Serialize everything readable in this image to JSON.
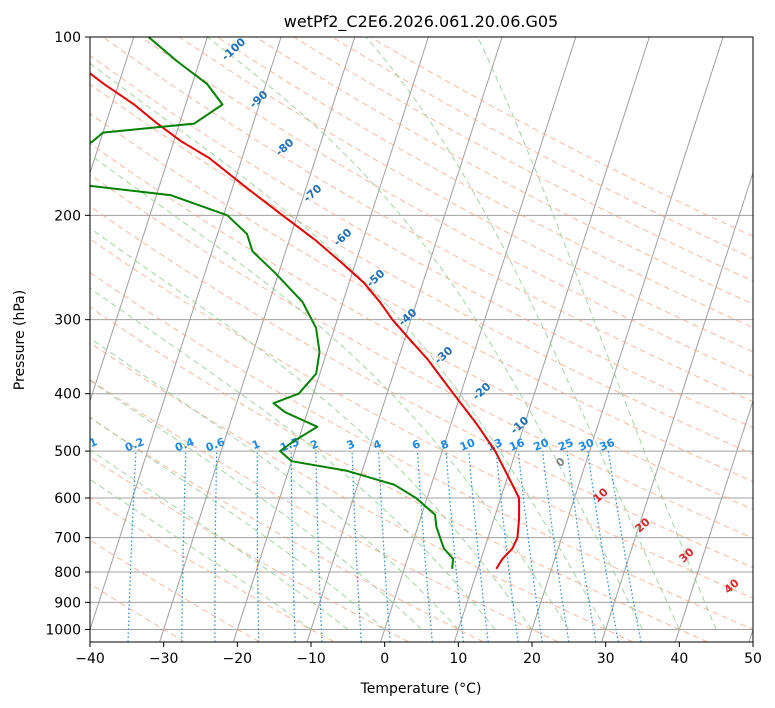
{
  "chart_data": {
    "type": "skew-t",
    "title": "wetPf2_C2E6.2026.061.20.06.G05",
    "xlabel": "Temperature (°C)",
    "ylabel": "Pressure (hPa)",
    "xlim": [
      -40,
      50
    ],
    "ylim_hpa": [
      1050,
      100
    ],
    "x_ticks": [
      "-40",
      "-30",
      "-20",
      "-10",
      "0",
      "10",
      "20",
      "30",
      "40",
      "50"
    ],
    "y_ticks": [
      "100",
      "200",
      "300",
      "400",
      "500",
      "600",
      "700",
      "800",
      "900",
      "1000"
    ],
    "grid": true,
    "series": [
      {
        "name": "temperature",
        "color": "#e00000",
        "points": [
          {
            "p": 790,
            "t": 12.5
          },
          {
            "p": 760,
            "t": 12.9
          },
          {
            "p": 730,
            "t": 13.8
          },
          {
            "p": 700,
            "t": 14.0
          },
          {
            "p": 650,
            "t": 13.4
          },
          {
            "p": 600,
            "t": 12.5
          },
          {
            "p": 560,
            "t": 10.5
          },
          {
            "p": 500,
            "t": 7.2
          },
          {
            "p": 450,
            "t": 3.5
          },
          {
            "p": 400,
            "t": -1.0
          },
          {
            "p": 350,
            "t": -6.0
          },
          {
            "p": 320,
            "t": -9.8
          },
          {
            "p": 300,
            "t": -12.5
          },
          {
            "p": 280,
            "t": -15.0
          },
          {
            "p": 260,
            "t": -18.0
          },
          {
            "p": 240,
            "t": -22.0
          },
          {
            "p": 220,
            "t": -26.5
          },
          {
            "p": 200,
            "t": -32.0
          },
          {
            "p": 180,
            "t": -38.0
          },
          {
            "p": 160,
            "t": -44.5
          },
          {
            "p": 150,
            "t": -49.0
          },
          {
            "p": 140,
            "t": -53.0
          },
          {
            "p": 130,
            "t": -57.0
          },
          {
            "p": 120,
            "t": -62.0
          },
          {
            "p": 110,
            "t": -67.0
          },
          {
            "p": 100,
            "t": -72.0
          }
        ]
      },
      {
        "name": "dewpoint",
        "color": "#008000",
        "points": [
          {
            "p": 790,
            "t": 6.5
          },
          {
            "p": 760,
            "t": 6.2
          },
          {
            "p": 730,
            "t": 4.5
          },
          {
            "p": 700,
            "t": 3.5
          },
          {
            "p": 670,
            "t": 2.5
          },
          {
            "p": 640,
            "t": 1.8
          },
          {
            "p": 600,
            "t": -1.5
          },
          {
            "p": 570,
            "t": -5.0
          },
          {
            "p": 540,
            "t": -12.0
          },
          {
            "p": 520,
            "t": -20.0
          },
          {
            "p": 500,
            "t": -22.0
          },
          {
            "p": 480,
            "t": -20.5
          },
          {
            "p": 455,
            "t": -18.0
          },
          {
            "p": 430,
            "t": -23.0
          },
          {
            "p": 415,
            "t": -25.0
          },
          {
            "p": 400,
            "t": -22.0
          },
          {
            "p": 370,
            "t": -20.5
          },
          {
            "p": 340,
            "t": -21.0
          },
          {
            "p": 310,
            "t": -22.5
          },
          {
            "p": 280,
            "t": -25.5
          },
          {
            "p": 250,
            "t": -30.5
          },
          {
            "p": 230,
            "t": -34.5
          },
          {
            "p": 215,
            "t": -36.0
          },
          {
            "p": 200,
            "t": -39.5
          },
          {
            "p": 185,
            "t": -48.0
          },
          {
            "p": 178,
            "t": -60.0
          },
          {
            "p": 172,
            "t": -69.0
          },
          {
            "p": 162,
            "t": -65.0
          },
          {
            "p": 150,
            "t": -61.0
          },
          {
            "p": 145,
            "t": -60.0
          },
          {
            "p": 140,
            "t": -48.0
          },
          {
            "p": 130,
            "t": -45.0
          },
          {
            "p": 120,
            "t": -48.0
          },
          {
            "p": 110,
            "t": -53.0
          },
          {
            "p": 100,
            "t": -58.0
          }
        ]
      }
    ],
    "dry_adiabat_labels": [
      "-100",
      "-90",
      "-80",
      "-70",
      "-60",
      "-50",
      "-40",
      "-30",
      "-20",
      "-10"
    ],
    "mixing_ratio_labels": [
      "0.1",
      "0.2",
      "0.4",
      "0.6",
      "1",
      "1.5",
      "2",
      "3",
      "4",
      "6",
      "8",
      "10",
      "13",
      "16",
      "20",
      "25",
      "30",
      "36"
    ],
    "moist_adiabat_labels": [
      "0",
      "10",
      "20",
      "30",
      "40"
    ],
    "colors": {
      "dry_adiabat_label": "#1f6fb4",
      "mixing_ratio": "#1e88e5",
      "moist_label_zero": "#808080",
      "moist_label": "#d62728",
      "dry_adiabat_line": "#f5a080",
      "moist_adiabat_line": "#90c890",
      "isotherm": "#a0a0a0"
    }
  }
}
